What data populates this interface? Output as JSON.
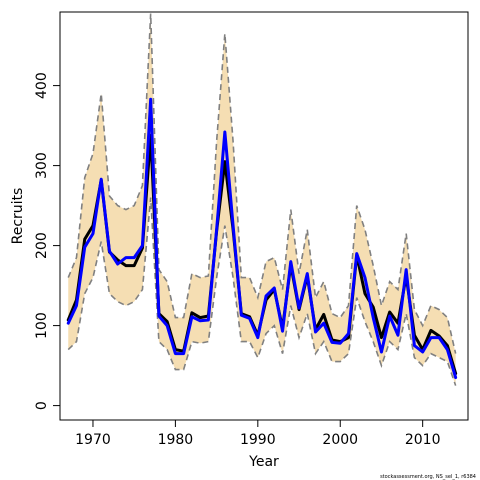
{
  "chart_data": {
    "type": "line",
    "xlabel": "Year",
    "ylabel": "Recruits",
    "footnote": "stockassessment.org, NS_sel_1, r6384",
    "xlim": [
      1966,
      2015.5
    ],
    "ylim": [
      -18,
      492
    ],
    "xticks": [
      1970,
      1980,
      1990,
      2000,
      2010
    ],
    "yticks": [
      0,
      100,
      200,
      300,
      400
    ],
    "grid": false,
    "colors": {
      "band": "#f5deb3",
      "bounds": "#808080",
      "series1": "#000000",
      "series2": "#0000ff"
    },
    "x": [
      1967,
      1968,
      1969,
      1970,
      1971,
      1972,
      1973,
      1974,
      1975,
      1976,
      1977,
      1978,
      1979,
      1980,
      1981,
      1982,
      1983,
      1984,
      1985,
      1986,
      1987,
      1988,
      1989,
      1990,
      1991,
      1992,
      1993,
      1994,
      1995,
      1996,
      1997,
      1998,
      1999,
      2000,
      2001,
      2002,
      2003,
      2004,
      2005,
      2006,
      2007,
      2008,
      2009,
      2010,
      2011,
      2012,
      2013,
      2014
    ],
    "series": [
      {
        "values": [
          107,
          132,
          208,
          225,
          282,
          192,
          182,
          175,
          175,
          197,
          338,
          115,
          105,
          70,
          68,
          116,
          110,
          112,
          218,
          305,
          220,
          115,
          111,
          88,
          132,
          145,
          97,
          176,
          120,
          162,
          95,
          114,
          82,
          80,
          85,
          188,
          140,
          123,
          85,
          117,
          103,
          162,
          88,
          70,
          94,
          87,
          75,
          40
        ]
      },
      {
        "values": [
          103,
          125,
          198,
          215,
          283,
          193,
          177,
          185,
          185,
          200,
          383,
          112,
          100,
          65,
          65,
          111,
          106,
          107,
          220,
          342,
          225,
          113,
          109,
          85,
          137,
          147,
          93,
          180,
          122,
          165,
          92,
          103,
          79,
          78,
          90,
          190,
          160,
          110,
          67,
          112,
          88,
          170,
          75,
          67,
          85,
          85,
          70,
          35
        ]
      }
    ],
    "upper_bound": [
      160,
      185,
      285,
      315,
      390,
      262,
      250,
      245,
      250,
      275,
      490,
      170,
      155,
      110,
      110,
      165,
      160,
      162,
      330,
      465,
      330,
      160,
      160,
      135,
      180,
      185,
      145,
      245,
      165,
      220,
      135,
      155,
      115,
      110,
      125,
      250,
      220,
      175,
      125,
      155,
      145,
      215,
      120,
      100,
      125,
      120,
      110,
      65
    ],
    "lower_bound": [
      70,
      80,
      140,
      160,
      205,
      140,
      130,
      125,
      130,
      145,
      260,
      80,
      70,
      45,
      45,
      80,
      78,
      80,
      160,
      225,
      160,
      80,
      80,
      60,
      90,
      100,
      65,
      125,
      85,
      115,
      65,
      80,
      55,
      55,
      65,
      135,
      105,
      80,
      50,
      80,
      70,
      115,
      60,
      50,
      65,
      60,
      55,
      25
    ]
  }
}
